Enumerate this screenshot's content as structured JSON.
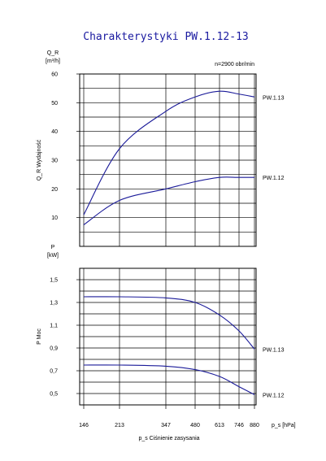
{
  "chart_data": [
    {
      "type": "line",
      "title": "Charakterystyki PW.1.12-13",
      "ylabel_symbol": "Q_R",
      "ylabel_unit": "[m³/h]",
      "ylabel": "Q_R Wydajność",
      "annotation": "n=2900 obr/min",
      "ylim": [
        0,
        60
      ],
      "yticks": [
        10,
        20,
        30,
        40,
        50,
        60
      ],
      "x": [
        146,
        213,
        347,
        480,
        613,
        746,
        880
      ],
      "series": [
        {
          "name": "PW.1.13",
          "values": [
            11,
            34,
            47,
            52,
            54,
            53,
            52
          ]
        },
        {
          "name": "PW.1.12",
          "values": [
            7.5,
            16,
            20,
            22.5,
            24,
            24,
            24
          ]
        }
      ]
    },
    {
      "type": "line",
      "ylabel_symbol": "P",
      "ylabel_unit": "[kW]",
      "ylabel": "P Moc",
      "ylim": [
        0.4,
        1.6
      ],
      "yticks": [
        "0,5",
        "0,7",
        "0,9",
        "1,1",
        "1,3",
        "1,5"
      ],
      "yticks_values": [
        0.5,
        0.7,
        0.9,
        1.1,
        1.3,
        1.5
      ],
      "xlabel": "p_s Ciśnienie zasysania",
      "xunit": "p_s [hPa]",
      "x": [
        146,
        213,
        347,
        480,
        613,
        746,
        880
      ],
      "xticks": [
        "146",
        "213",
        "347",
        "480",
        "613",
        "746",
        "880"
      ],
      "series": [
        {
          "name": "PW.1.13",
          "values": [
            1.35,
            1.35,
            1.34,
            1.3,
            1.19,
            1.05,
            0.89
          ]
        },
        {
          "name": "PW.1.12",
          "values": [
            0.75,
            0.75,
            0.74,
            0.71,
            0.65,
            0.56,
            0.49
          ]
        }
      ]
    }
  ]
}
